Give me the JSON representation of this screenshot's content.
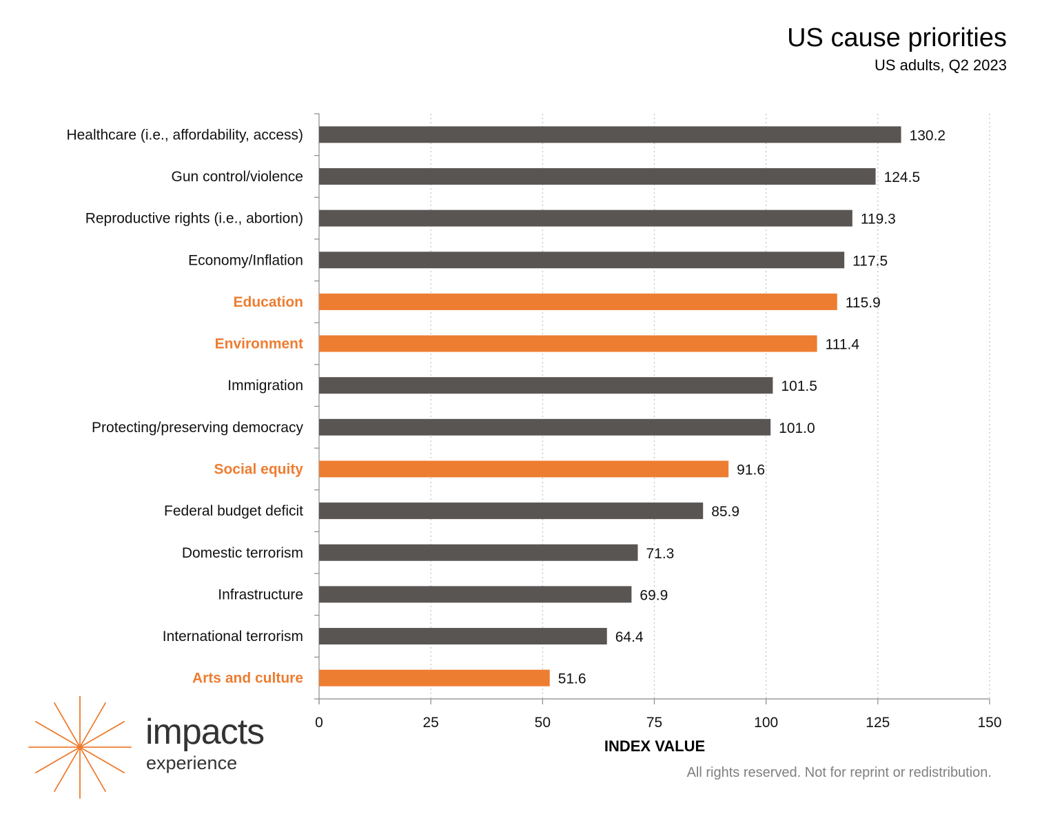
{
  "header": {
    "title": "US cause priorities",
    "subtitle": "US adults, Q2 2023"
  },
  "chart_data": {
    "type": "bar",
    "orientation": "horizontal",
    "title": "US cause priorities",
    "subtitle": "US adults, Q2 2023",
    "xlabel": "INDEX VALUE",
    "ylabel": "",
    "xlim": [
      0,
      150
    ],
    "xticks": [
      0,
      25,
      50,
      75,
      100,
      125,
      150
    ],
    "grid": "vertical dotted",
    "categories": [
      "Healthcare (i.e., affordability, access)",
      "Gun control/violence",
      "Reproductive rights (i.e., abortion)",
      "Economy/Inflation",
      "Education",
      "Environment",
      "Immigration",
      "Protecting/preserving democracy",
      "Social equity",
      "Federal budget deficit",
      "Domestic terrorism",
      "Infrastructure",
      "International terrorism",
      "Arts and culture"
    ],
    "values": [
      130.2,
      124.5,
      119.3,
      117.5,
      115.9,
      111.4,
      101.5,
      101.0,
      91.6,
      85.9,
      71.3,
      69.9,
      64.4,
      51.6
    ],
    "value_labels": [
      "130.2",
      "124.5",
      "119.3",
      "117.5",
      "115.9",
      "111.4",
      "101.5",
      "101.0",
      "91.6",
      "85.9",
      "71.3",
      "69.9",
      "64.4",
      "51.6"
    ],
    "highlighted": [
      false,
      false,
      false,
      false,
      true,
      true,
      false,
      false,
      true,
      false,
      false,
      false,
      false,
      true
    ],
    "colors": {
      "default": "#595553",
      "highlight": "#ED7D31",
      "grid": "#bfbfbf"
    }
  },
  "branding": {
    "logo_word": "impacts",
    "logo_sub": "experience",
    "logo_color": "#ED7D31"
  },
  "footer": {
    "note": "All rights reserved. Not for reprint or redistribution."
  }
}
